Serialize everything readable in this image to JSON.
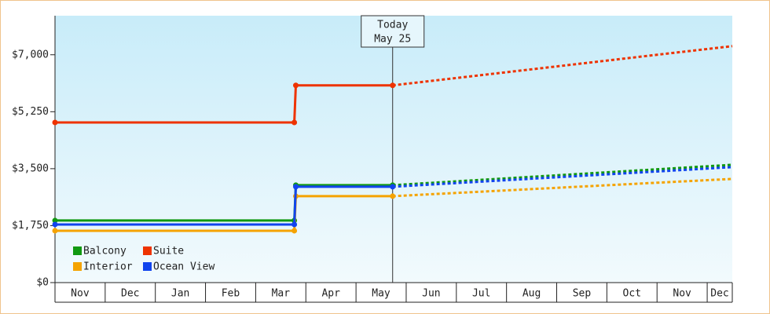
{
  "chart_data": {
    "type": "line",
    "categories": [
      "Nov",
      "Dec",
      "Jan",
      "Feb",
      "Mar",
      "Apr",
      "May",
      "Jun",
      "Jul",
      "Aug",
      "Sep",
      "Oct",
      "Nov",
      "Dec"
    ],
    "xlim": [
      0,
      13.5
    ],
    "ylim": [
      0,
      8200
    ],
    "yticks": [
      {
        "value": 0,
        "label": "$0"
      },
      {
        "value": 1750,
        "label": "$1,750"
      },
      {
        "value": 3500,
        "label": "$3,500"
      },
      {
        "value": 5250,
        "label": "$5,250"
      },
      {
        "value": 7000,
        "label": "$7,000"
      }
    ],
    "annotation": {
      "x": 6.73,
      "lines": [
        "Today",
        "May 25"
      ]
    },
    "series": [
      {
        "name": "Balcony",
        "color": "#119911",
        "x": [
          0,
          4.77,
          4.8,
          6.73
        ],
        "values": [
          1907,
          1907,
          2993,
          2993
        ],
        "forecast_x": [
          6.73,
          8,
          10,
          12,
          13.5
        ],
        "forecast_values": [
          2993,
          3111,
          3296,
          3481,
          3620
        ]
      },
      {
        "name": "Suite",
        "color": "#ee3300",
        "x": [
          0,
          4.77,
          4.8,
          6.73
        ],
        "values": [
          4920,
          4920,
          6060,
          6060
        ],
        "forecast_x": [
          6.73,
          8,
          10,
          12,
          13.5
        ],
        "forecast_values": [
          6060,
          6286,
          6642,
          7000,
          7265
        ]
      },
      {
        "name": "Interior",
        "color": "#f5a300",
        "x": [
          0,
          4.77,
          4.8,
          6.73
        ],
        "values": [
          1593,
          1593,
          2655,
          2655
        ],
        "forecast_x": [
          6.73,
          8,
          10,
          12,
          13.5
        ],
        "forecast_values": [
          2655,
          2755,
          2912,
          3069,
          3186
        ]
      },
      {
        "name": "Ocean View",
        "color": "#1144ee",
        "x": [
          0,
          4.77,
          4.8,
          6.73
        ],
        "values": [
          1786,
          1786,
          2945,
          2945
        ],
        "forecast_x": [
          6.73,
          8,
          10,
          12,
          13.5
        ],
        "forecast_values": [
          2945,
          3058,
          3236,
          3414,
          3548
        ]
      }
    ]
  }
}
